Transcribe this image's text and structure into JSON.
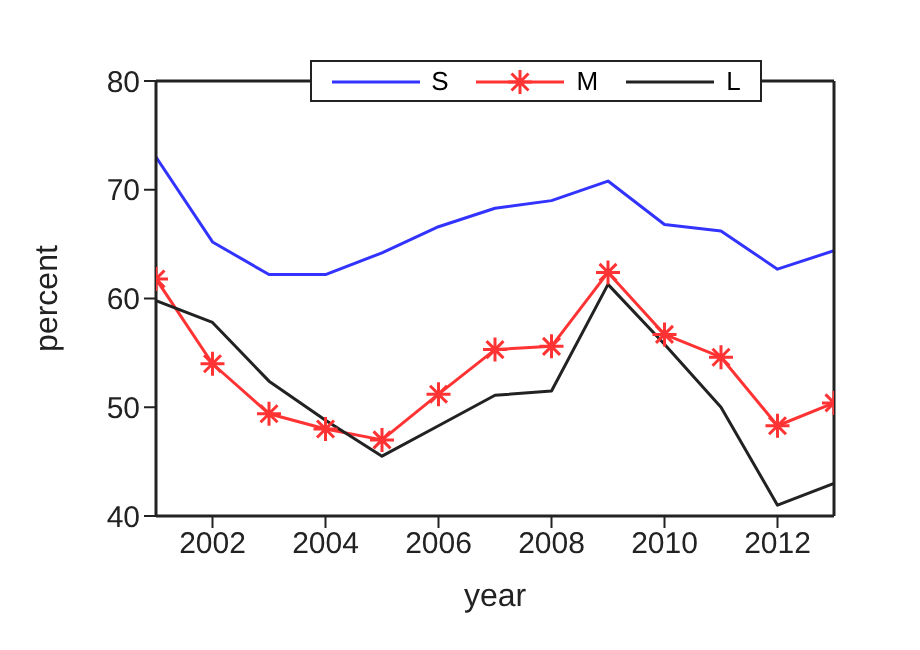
{
  "chart_data": {
    "type": "line",
    "xlabel": "year",
    "ylabel": "percent",
    "x": [
      2001,
      2002,
      2003,
      2004,
      2005,
      2006,
      2007,
      2008,
      2009,
      2010,
      2011,
      2012,
      2013
    ],
    "xlim": [
      2001,
      2013
    ],
    "xticks": [
      2002,
      2004,
      2006,
      2008,
      2010,
      2012
    ],
    "ylim": [
      40,
      80
    ],
    "yticks": [
      40,
      50,
      60,
      70,
      80
    ],
    "legend": "top",
    "line_style": "solid",
    "series": [
      {
        "name": "S",
        "color": "#3333ff",
        "marker": "none",
        "values": [
          73,
          65.2,
          62.2,
          62.2,
          64.2,
          66.6,
          68.3,
          69,
          70.8,
          66.8,
          66.2,
          62.7,
          64.4
        ]
      },
      {
        "name": "M",
        "color": "#ff3333",
        "marker": "cross",
        "values": [
          61.8,
          54,
          49.4,
          48,
          47,
          51.2,
          55.3,
          55.6,
          62.4,
          56.7,
          54.6,
          48.3,
          50.4
        ]
      },
      {
        "name": "L",
        "color": "#222222",
        "marker": "none",
        "values": [
          59.8,
          57.8,
          52.4,
          48.8,
          45.5,
          48.3,
          51.1,
          51.5,
          61.3,
          55.8,
          50,
          41,
          43
        ]
      }
    ]
  }
}
